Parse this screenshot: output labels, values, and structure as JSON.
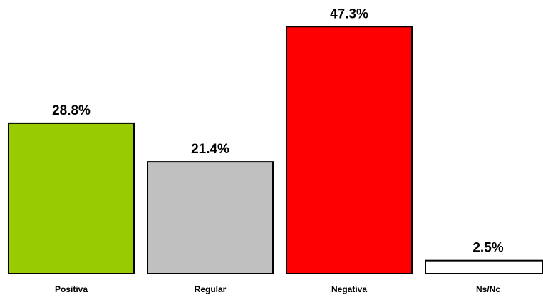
{
  "chart_data": {
    "type": "bar",
    "categories": [
      "Positiva",
      "Regular",
      "Negativa",
      "Ns/Nc"
    ],
    "values": [
      28.8,
      21.4,
      47.3,
      2.5
    ],
    "value_labels": [
      "28.8%",
      "21.4%",
      "47.3%",
      "2.5%"
    ],
    "colors": [
      "#99cc00",
      "#c0c0c0",
      "#ff0000",
      "#ffffff"
    ],
    "title": "",
    "xlabel": "",
    "ylabel": "",
    "ylim": [
      0,
      50
    ],
    "grid": false,
    "legend": "none"
  }
}
